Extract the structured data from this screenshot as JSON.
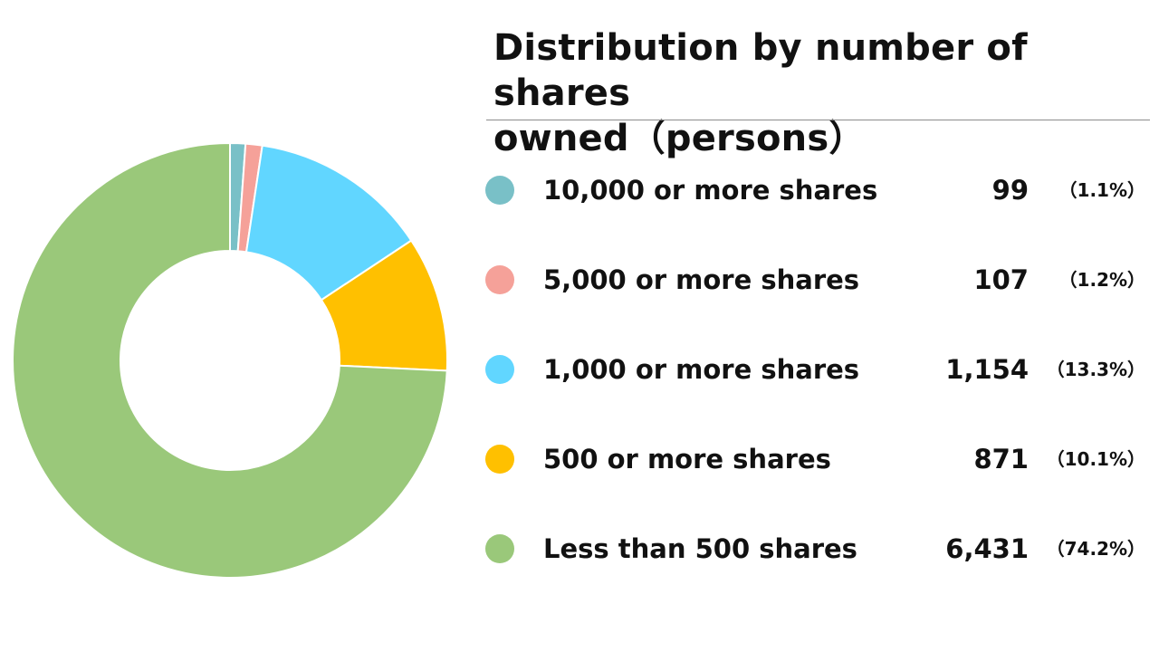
{
  "chart_data": {
    "type": "pie",
    "title": "Distribution by number of shares owned（persons）",
    "title_lines": [
      "Distribution by number of shares",
      "owned（persons）"
    ],
    "donut": true,
    "legend_position": "right",
    "series": [
      {
        "name": "10,000 or more shares",
        "value": 99,
        "value_label": "99",
        "percent": 1.1,
        "percent_label": "（1.1%）",
        "color": "#79C0C7"
      },
      {
        "name": "5,000 or more shares",
        "value": 107,
        "value_label": "107",
        "percent": 1.2,
        "percent_label": "（1.2%）",
        "color": "#F5A199"
      },
      {
        "name": "1,000 or more shares",
        "value": 1154,
        "value_label": "1,154",
        "percent": 13.3,
        "percent_label": "（13.3%）",
        "color": "#61D6FF"
      },
      {
        "name": "500 or more shares",
        "value": 871,
        "value_label": "871",
        "percent": 10.1,
        "percent_label": "（10.1%）",
        "color": "#FFC000"
      },
      {
        "name": "Less than 500 shares",
        "value": 6431,
        "value_label": "6,431",
        "percent": 74.2,
        "percent_label": "（74.2%）",
        "color": "#9AC87A"
      }
    ]
  }
}
